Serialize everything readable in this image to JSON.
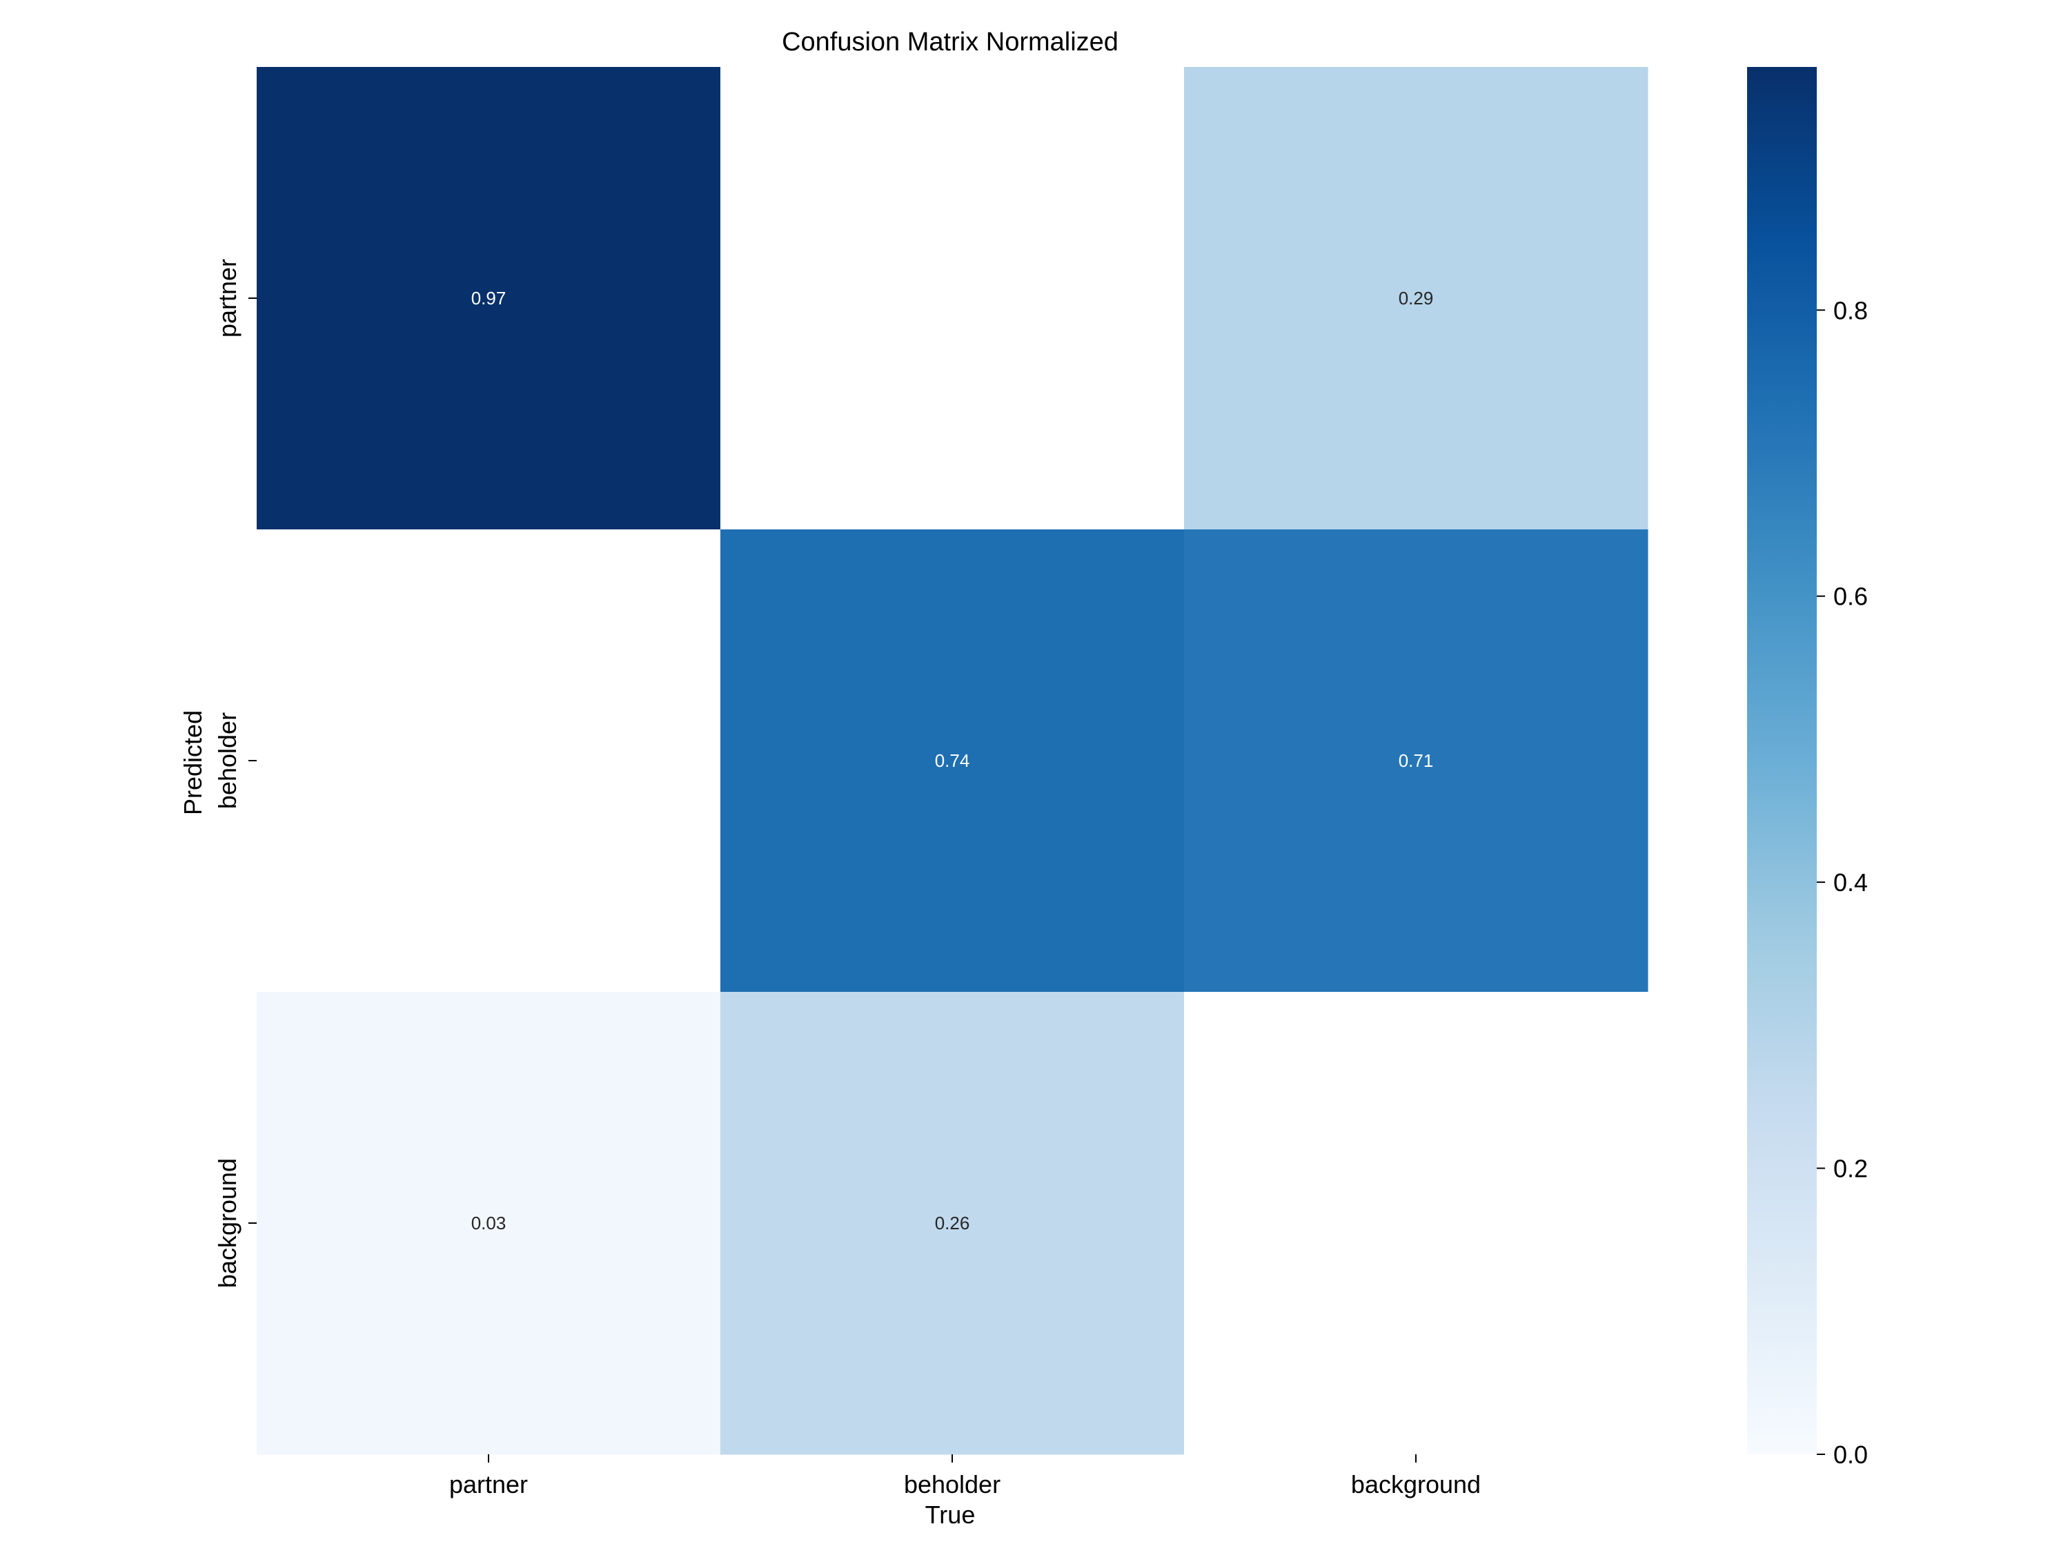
{
  "chart_data": {
    "type": "heatmap",
    "title": "Confusion Matrix Normalized",
    "xlabel": "True",
    "ylabel": "Predicted",
    "x_categories": [
      "partner",
      "beholder",
      "background"
    ],
    "y_categories": [
      "partner",
      "beholder",
      "background"
    ],
    "values": [
      [
        0.97,
        null,
        0.29
      ],
      [
        null,
        0.74,
        0.71
      ],
      [
        0.03,
        0.26,
        null
      ]
    ],
    "value_labels": [
      [
        "0.97",
        "",
        "0.29"
      ],
      [
        "",
        "0.74",
        "0.71"
      ],
      [
        "0.03",
        "0.26",
        ""
      ]
    ],
    "colorbar": {
      "range": [
        0.0,
        0.97
      ],
      "ticks": [
        0.0,
        0.2,
        0.4,
        0.6,
        0.8
      ],
      "tick_labels": [
        "0.0",
        "0.2",
        "0.4",
        "0.6",
        "0.8"
      ],
      "colormap": "Blues"
    },
    "colors": {
      "background": "#ffffff",
      "empty_cell": "#ffffff",
      "dark_text": "#262626",
      "light_text": "#ffffff",
      "axis": "#000000"
    }
  }
}
